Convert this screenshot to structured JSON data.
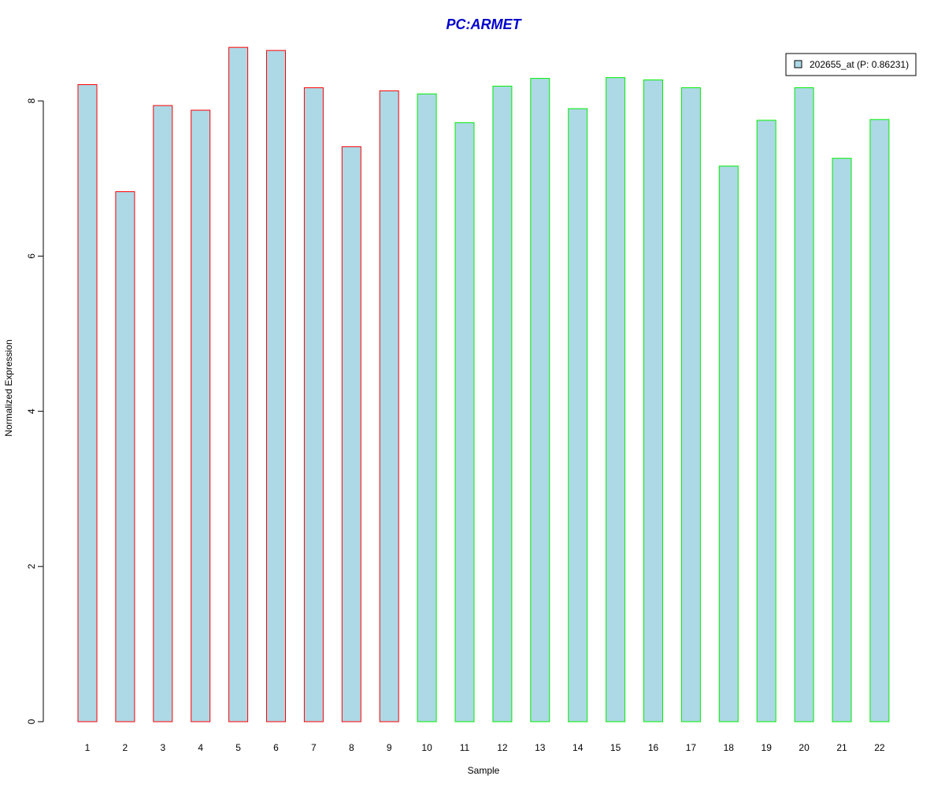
{
  "chart_data": {
    "type": "bar",
    "title": "PC:ARMET",
    "xlabel": "Sample",
    "ylabel": "Normalized Expression",
    "ylim": [
      0,
      8.8
    ],
    "yticks": [
      0,
      2,
      4,
      6,
      8
    ],
    "categories": [
      "1",
      "2",
      "3",
      "4",
      "5",
      "6",
      "7",
      "8",
      "9",
      "10",
      "11",
      "12",
      "13",
      "14",
      "15",
      "16",
      "17",
      "18",
      "19",
      "20",
      "21",
      "22"
    ],
    "series": [
      {
        "name": "202655_at (P: 0.86231)",
        "values": [
          8.21,
          6.83,
          7.94,
          7.88,
          8.69,
          8.65,
          8.17,
          7.41,
          8.13,
          8.09,
          7.72,
          8.19,
          8.29,
          7.9,
          8.3,
          8.27,
          8.17,
          7.16,
          7.75,
          8.17,
          7.26,
          7.76
        ]
      }
    ],
    "group_borders": [
      "red",
      "red",
      "red",
      "red",
      "red",
      "red",
      "red",
      "red",
      "red",
      "green",
      "green",
      "green",
      "green",
      "green",
      "green",
      "green",
      "green",
      "green",
      "green",
      "green",
      "green",
      "green"
    ],
    "colors": {
      "bar_fill": "#add8e6",
      "group_red": "#ff0000",
      "group_green": "#00ee00",
      "title": "#0000cc"
    },
    "legend": {
      "position": "top-right",
      "label": "202655_at (P: 0.86231)"
    },
    "grid": false
  }
}
